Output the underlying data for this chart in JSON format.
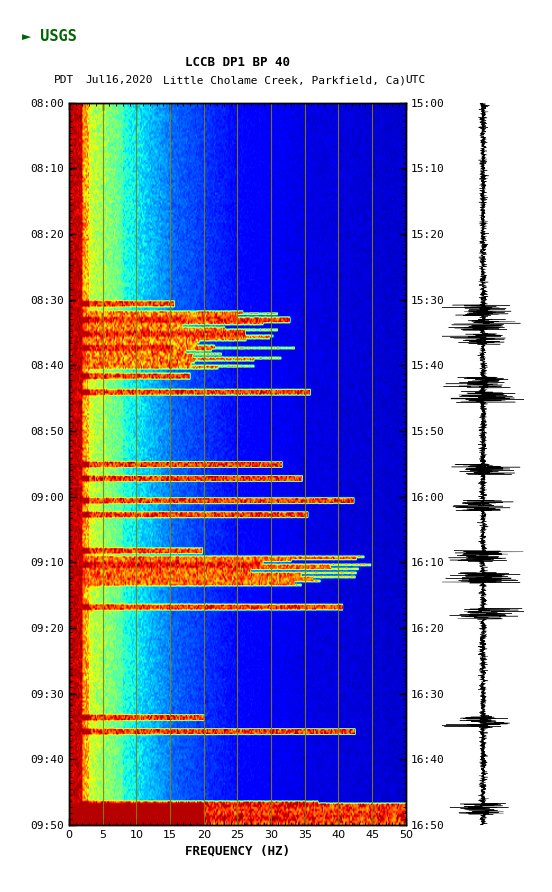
{
  "title_line1": "LCCB DP1 BP 40",
  "title_line2": "PDT   Jul16,2020Little Cholame Creek, Parkfield, Ca)     UTC",
  "title_line2_pdt": "PDT",
  "title_line2_date": "  Jul16,2020",
  "title_line2_station": "Little Cholame Creek, Parkfield, Ca)",
  "title_line2_utc": "UTC",
  "y_ticks_left": [
    "08:00",
    "08:10",
    "08:20",
    "08:30",
    "08:40",
    "08:50",
    "09:00",
    "09:10",
    "09:20",
    "09:30",
    "09:40",
    "09:50"
  ],
  "y_ticks_right": [
    "15:00",
    "15:10",
    "15:20",
    "15:30",
    "15:40",
    "15:50",
    "16:00",
    "16:10",
    "16:20",
    "16:30",
    "16:40",
    "16:50"
  ],
  "x_ticks": [
    0,
    5,
    10,
    15,
    20,
    25,
    30,
    35,
    40,
    45,
    50
  ],
  "xlabel": "FREQUENCY (HZ)",
  "x_min": 0,
  "x_max": 50,
  "vertical_lines": [
    5,
    10,
    15,
    20,
    25,
    30,
    35,
    40,
    45
  ],
  "vertical_line_color": "#8B8000",
  "background_color": "#ffffff",
  "logo_color": "#006400",
  "fig_width": 5.52,
  "fig_height": 8.92
}
